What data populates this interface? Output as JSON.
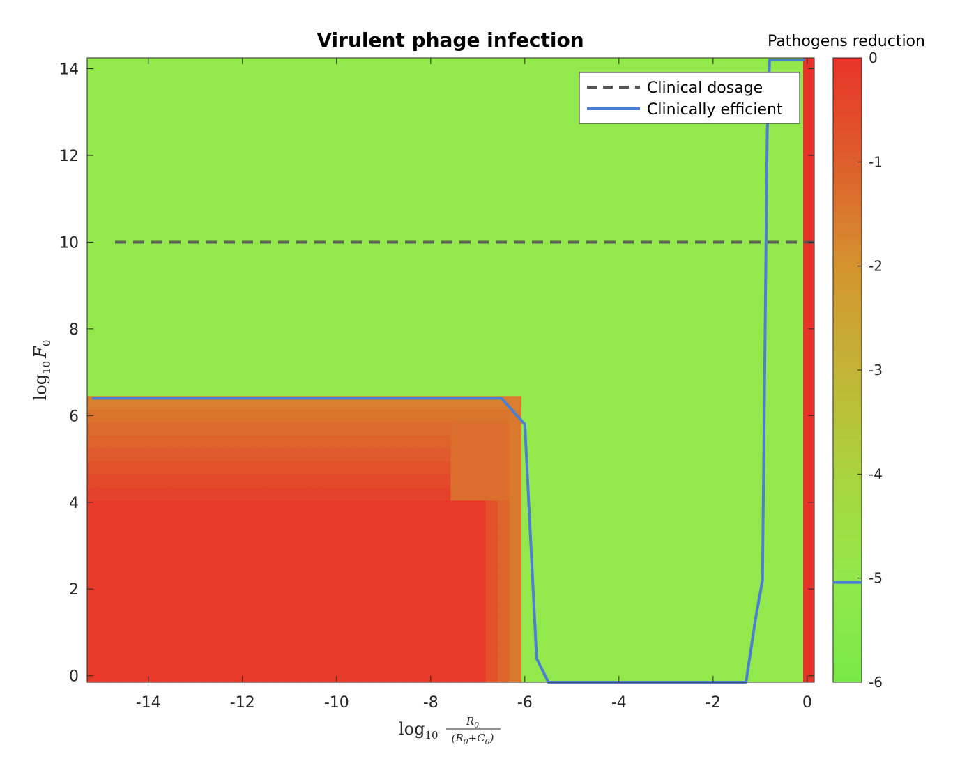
{
  "chart_data": {
    "type": "heatmap",
    "title": "Virulent phage infection",
    "colorbar": {
      "title": "Pathogens reduction",
      "range": [
        -6,
        0
      ],
      "ticks": [
        "0",
        "-1",
        "-2",
        "-3",
        "-4",
        "-5",
        "-6"
      ],
      "tick_values": [
        0,
        -1,
        -2,
        -3,
        -4,
        -5,
        -6
      ],
      "marked_level": -5,
      "colors": {
        "high": "#e8332a",
        "mid": "#d4922f",
        "low": "#7ae84a",
        "plateau": "#93e84b"
      }
    },
    "x_axis": {
      "label_base": "log",
      "label_sub": "10",
      "label_num": "R",
      "label_num_sub": "0",
      "label_den_open": "(R",
      "label_den_sub1": "0",
      "label_den_plus": "+C",
      "label_den_sub2": "0",
      "label_den_close": ")",
      "range": [
        -15.3,
        0.15
      ],
      "ticks": [
        "-14",
        "-12",
        "-10",
        "-8",
        "-6",
        "-4",
        "-2",
        "0"
      ],
      "tick_values": [
        -14,
        -12,
        -10,
        -8,
        -6,
        -4,
        -2,
        0
      ]
    },
    "y_axis": {
      "label_base": "log",
      "label_sub": "10",
      "label_var": "F",
      "label_var_sub": "0",
      "range": [
        -0.15,
        14.25
      ],
      "ticks": [
        "0",
        "2",
        "4",
        "6",
        "8",
        "10",
        "12",
        "14"
      ],
      "tick_values": [
        0,
        2,
        4,
        6,
        8,
        10,
        12,
        14
      ]
    },
    "legend": {
      "position": "top-right",
      "items": [
        {
          "label": "Clinical dosage",
          "style": "dashed",
          "color": "#555555"
        },
        {
          "label": "Clinically efficient",
          "style": "solid",
          "color": "#4a7fd4"
        }
      ]
    },
    "series": [
      {
        "name": "Clinical dosage",
        "type": "hline",
        "y": 10
      },
      {
        "name": "Clinically efficient",
        "type": "line",
        "x": [
          -15.2,
          -6.5,
          -6.0,
          -5.75,
          -5.5,
          -1.3,
          -1.1,
          -0.95,
          -0.85,
          -0.8,
          -0.05
        ],
        "y": [
          6.4,
          6.4,
          5.8,
          0.4,
          -0.15,
          -0.15,
          1.3,
          2.2,
          12.5,
          14.2,
          14.2
        ]
      }
    ],
    "regions": [
      {
        "description_x": [
          -15.3,
          -6.9
        ],
        "y": [
          -0.15,
          6.3
        ],
        "value": -0.2
      },
      {
        "x": [
          -6.9,
          -6.15
        ],
        "y": [
          -0.15,
          6.3
        ],
        "value": -1.0
      },
      {
        "x": [
          -15.3,
          -6.9
        ],
        "y": [
          4.0,
          6.3
        ],
        "value": -1.2
      },
      {
        "x": [
          0.0,
          0.15
        ],
        "y": [
          -0.15,
          14.25
        ],
        "value": 0
      }
    ],
    "background_value": -4.8
  }
}
